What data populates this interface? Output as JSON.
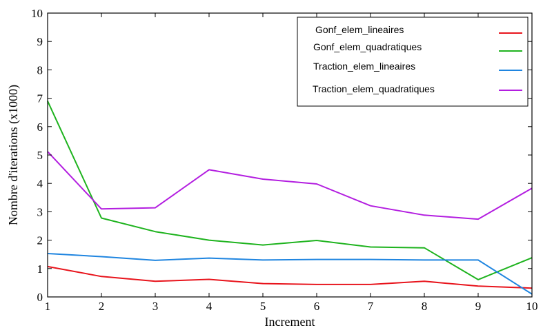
{
  "chart_data": {
    "type": "line",
    "title": "",
    "xlabel": "Increment",
    "ylabel": "Nombre d'iterations (x1000)",
    "xlim": [
      1,
      10
    ],
    "ylim": [
      0,
      10
    ],
    "x_ticks": [
      1,
      2,
      3,
      4,
      5,
      6,
      7,
      8,
      9,
      10
    ],
    "y_ticks": [
      0,
      1,
      2,
      3,
      4,
      5,
      6,
      7,
      8,
      9,
      10
    ],
    "grid": false,
    "legend_position": "top-right",
    "x": [
      1,
      2,
      3,
      4,
      5,
      6,
      7,
      8,
      9,
      10
    ],
    "series": [
      {
        "name": "Gonf_elem_lineaires",
        "color": "#e8141c",
        "values": [
          1.07,
          0.72,
          0.55,
          0.62,
          0.47,
          0.44,
          0.44,
          0.55,
          0.38,
          0.31
        ]
      },
      {
        "name": "Gonf_elem_quadratiques",
        "color": "#1eb31e",
        "values": [
          6.9,
          2.78,
          2.3,
          2.0,
          1.83,
          1.99,
          1.76,
          1.73,
          0.61,
          1.38
        ]
      },
      {
        "name": "Traction_elem_lineaires",
        "color": "#1f85e0",
        "values": [
          1.53,
          1.42,
          1.29,
          1.37,
          1.3,
          1.32,
          1.32,
          1.3,
          1.3,
          0.1
        ]
      },
      {
        "name": "Traction_elem_quadratiques",
        "color": "#b31ee0",
        "values": [
          5.12,
          3.1,
          3.14,
          4.48,
          4.15,
          3.98,
          3.21,
          2.88,
          2.74,
          3.83
        ]
      }
    ]
  }
}
